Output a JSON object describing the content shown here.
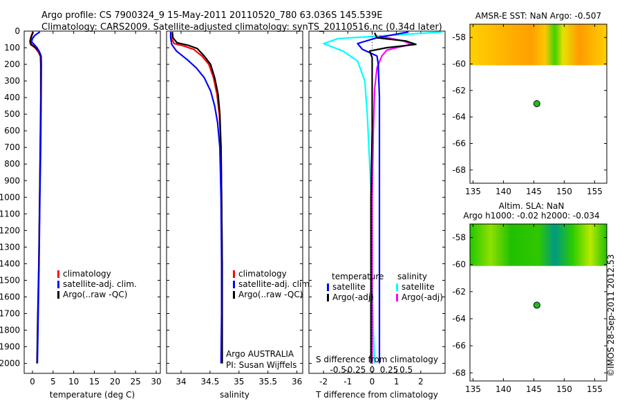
{
  "header": {
    "line1": "Argo profile: CS 7900324_9 15-May-2011 20110520_780 63.036S 145.539E",
    "line2": "Climatology: CARS2009. Satellite-adjusted climatology: synTS_20110516.nc (0.34d later)"
  },
  "footer_credit": "©IMOS 28-Sep-2011 2012.53",
  "colors": {
    "climatology": "#ff0000",
    "satellite": "#0000ff",
    "argo": "#000000",
    "sat_s": "#00ffff",
    "argo_s": "#ff00ff"
  },
  "chart_data": [
    {
      "type": "line",
      "xlabel": "temperature (deg C)",
      "xlim": [
        -2,
        31
      ],
      "xticks": [
        0,
        5,
        10,
        15,
        20,
        25,
        30
      ],
      "xticklabels": [
        "0",
        "5",
        "10",
        "15",
        "20",
        "25",
        "30"
      ],
      "ylim": [
        2060,
        0
      ],
      "yticks": [
        0,
        100,
        200,
        300,
        400,
        500,
        600,
        700,
        800,
        900,
        1000,
        1100,
        1200,
        1300,
        1400,
        1500,
        1600,
        1700,
        1800,
        1900,
        2000
      ],
      "yticklabels": [
        "0",
        "100",
        "200",
        "300",
        "400",
        "500",
        "600",
        "700",
        "800",
        "900",
        "1000",
        "1100",
        "1200",
        "1300",
        "1400",
        "1500",
        "1600",
        "1700",
        "1800",
        "1900",
        "2000"
      ],
      "legend": [
        "climatology",
        "satellite-adj. clim.",
        "Argo(..raw -QC)"
      ],
      "series": [
        {
          "name": "climatology",
          "color": "#ff0000",
          "points": [
            [
              0.1,
              5
            ],
            [
              -0.3,
              30
            ],
            [
              -0.6,
              60
            ],
            [
              -0.5,
              80
            ],
            [
              0.6,
              100
            ],
            [
              1.4,
              125
            ],
            [
              1.9,
              150
            ],
            [
              2.0,
              200
            ],
            [
              2.0,
              400
            ],
            [
              1.9,
              700
            ],
            [
              1.75,
              1000
            ],
            [
              1.55,
              1400
            ],
            [
              1.35,
              1700
            ],
            [
              1.15,
              2000
            ]
          ]
        },
        {
          "name": "Argo(..raw -QC)",
          "color": "#000000",
          "points": [
            [
              0.2,
              5
            ],
            [
              -0.2,
              30
            ],
            [
              -0.6,
              60
            ],
            [
              -0.3,
              80
            ],
            [
              0.8,
              100
            ],
            [
              1.6,
              125
            ],
            [
              2.05,
              155
            ],
            [
              2.05,
              200
            ],
            [
              2.05,
              400
            ],
            [
              1.9,
              700
            ],
            [
              1.75,
              1000
            ],
            [
              1.55,
              1400
            ],
            [
              1.3,
              1700
            ],
            [
              1.1,
              2000
            ]
          ]
        },
        {
          "name": "satellite-adj. clim.",
          "color": "#0000ff",
          "points": [
            [
              1.8,
              5
            ],
            [
              0.6,
              25
            ],
            [
              0.0,
              45
            ],
            [
              -0.2,
              65
            ],
            [
              0.4,
              80
            ],
            [
              1.1,
              100
            ],
            [
              1.7,
              125
            ],
            [
              2.1,
              150
            ],
            [
              2.15,
              200
            ],
            [
              2.1,
              400
            ],
            [
              2.0,
              700
            ],
            [
              1.8,
              1000
            ],
            [
              1.6,
              1400
            ],
            [
              1.4,
              1700
            ],
            [
              1.2,
              2000
            ]
          ]
        }
      ],
      "annotations": []
    },
    {
      "type": "line",
      "xlabel": "salinity",
      "xlim": [
        33.75,
        36.1
      ],
      "xticks": [
        34,
        34.5,
        35,
        35.5,
        36
      ],
      "xticklabels": [
        "34",
        "34.5",
        "35",
        "35.5",
        "36"
      ],
      "ylim": [
        2060,
        0
      ],
      "yticks": [
        0,
        100,
        200,
        300,
        400,
        500,
        600,
        700,
        800,
        900,
        1000,
        1100,
        1200,
        1300,
        1400,
        1500,
        1600,
        1700,
        1800,
        1900,
        2000
      ],
      "yticklabels": [],
      "legend": [
        "climatology",
        "satellite-adj. clim.",
        "Argo(..raw -QC)"
      ],
      "series": [
        {
          "name": "climatology",
          "color": "#ff0000",
          "points": [
            [
              33.82,
              5
            ],
            [
              33.83,
              40
            ],
            [
              33.88,
              75
            ],
            [
              34.05,
              90
            ],
            [
              34.22,
              110
            ],
            [
              34.36,
              150
            ],
            [
              34.48,
              200
            ],
            [
              34.56,
              280
            ],
            [
              34.62,
              380
            ],
            [
              34.66,
              500
            ],
            [
              34.69,
              700
            ],
            [
              34.7,
              1000
            ],
            [
              34.71,
              1400
            ],
            [
              34.71,
              1700
            ],
            [
              34.71,
              2000
            ]
          ]
        },
        {
          "name": "Argo(..raw -QC)",
          "color": "#000000",
          "points": [
            [
              33.85,
              5
            ],
            [
              33.86,
              40
            ],
            [
              33.93,
              70
            ],
            [
              34.12,
              85
            ],
            [
              34.28,
              105
            ],
            [
              34.4,
              150
            ],
            [
              34.51,
              200
            ],
            [
              34.58,
              280
            ],
            [
              34.64,
              380
            ],
            [
              34.67,
              500
            ],
            [
              34.69,
              700
            ],
            [
              34.7,
              1000
            ],
            [
              34.71,
              1400
            ],
            [
              34.71,
              1700
            ],
            [
              34.71,
              2000
            ]
          ]
        },
        {
          "name": "satellite-adj. clim.",
          "color": "#0000ff",
          "points": [
            [
              33.82,
              5
            ],
            [
              33.82,
              40
            ],
            [
              33.84,
              80
            ],
            [
              33.92,
              120
            ],
            [
              34.1,
              170
            ],
            [
              34.26,
              220
            ],
            [
              34.4,
              280
            ],
            [
              34.51,
              360
            ],
            [
              34.58,
              450
            ],
            [
              34.63,
              550
            ],
            [
              34.67,
              700
            ],
            [
              34.69,
              1000
            ],
            [
              34.7,
              1400
            ],
            [
              34.7,
              1700
            ],
            [
              34.69,
              2000
            ]
          ]
        }
      ],
      "annotations": [
        "Argo AUSTRALIA",
        "PI: Susan Wijffels"
      ]
    },
    {
      "type": "line",
      "xlabel": "T difference from climatology",
      "xlabel_top": "S difference from climatology",
      "xlim": [
        -2.6,
        3.0
      ],
      "xticks": [
        -2,
        -1,
        0,
        1,
        2
      ],
      "xticklabels": [
        "-2",
        "-1",
        "0",
        "1",
        "2"
      ],
      "s_ticks": [
        -0.5,
        -0.25,
        0,
        0.25,
        0.5
      ],
      "s_ticklabels": [
        "-0.5",
        "-0.25",
        "0",
        "0.25",
        "0.5"
      ],
      "ylim": [
        2060,
        0
      ],
      "yticks": [
        0,
        100,
        200,
        300,
        400,
        500,
        600,
        700,
        800,
        900,
        1000,
        1100,
        1200,
        1300,
        1400,
        1500,
        1600,
        1700,
        1800,
        1900,
        2000
      ],
      "yticklabels": [],
      "legend_temperature_title": "temperature",
      "legend_salinity_title": "salinity",
      "legend_temperature": [
        "satellite",
        "Argo(-adj)"
      ],
      "legend_salinity": [
        "satellite",
        "Argo(-adj)"
      ],
      "series": [
        {
          "name": "S satellite",
          "color": "#00ffff",
          "points": [
            [
              2.9,
              5
            ],
            [
              0.8,
              25
            ],
            [
              -1.4,
              45
            ],
            [
              -2.0,
              75
            ],
            [
              -1.2,
              120
            ],
            [
              -0.6,
              180
            ],
            [
              -0.3,
              300
            ],
            [
              -0.2,
              500
            ],
            [
              -0.1,
              800
            ],
            [
              0.0,
              1100
            ],
            [
              0.0,
              1500
            ],
            [
              0.05,
              1800
            ],
            [
              0.1,
              2000
            ]
          ]
        },
        {
          "name": "S Argo(-adj)",
          "color": "#ff00ff",
          "points": [
            [
              0.3,
              30
            ],
            [
              1.3,
              60
            ],
            [
              1.6,
              80
            ],
            [
              1.0,
              100
            ],
            [
              0.6,
              115
            ],
            [
              0.4,
              150
            ],
            [
              0.2,
              220
            ],
            [
              0.1,
              350
            ],
            [
              0.05,
              600
            ],
            [
              0.0,
              1000
            ],
            [
              0.0,
              1500
            ],
            [
              0.0,
              2000
            ]
          ]
        },
        {
          "name": "T satellite",
          "color": "#0000ff",
          "points": [
            [
              1.5,
              5
            ],
            [
              0.2,
              40
            ],
            [
              -0.6,
              75
            ],
            [
              -0.4,
              110
            ],
            [
              0.2,
              150
            ],
            [
              0.25,
              200
            ],
            [
              0.3,
              400
            ],
            [
              0.3,
              700
            ],
            [
              0.3,
              1000
            ],
            [
              0.3,
              1400
            ],
            [
              0.3,
              1700
            ],
            [
              0.3,
              2000
            ]
          ]
        },
        {
          "name": "T Argo(-adj)",
          "color": "#000000",
          "points": [
            [
              0.1,
              10
            ],
            [
              0.2,
              40
            ],
            [
              1.4,
              60
            ],
            [
              1.8,
              80
            ],
            [
              0.6,
              100
            ],
            [
              -0.1,
              120
            ],
            [
              0.0,
              160
            ],
            [
              0.0,
              300
            ],
            [
              0.0,
              600
            ],
            [
              -0.05,
              1000
            ],
            [
              -0.05,
              1400
            ],
            [
              -0.05,
              1700
            ],
            [
              -0.05,
              2000
            ]
          ]
        }
      ]
    },
    {
      "type": "heatmap",
      "title": "AMSR-E SST: NaN Argo: -0.507",
      "xlim": [
        134.5,
        157
      ],
      "ylim": [
        -69,
        -57
      ],
      "xticks": [
        135,
        140,
        145,
        150,
        155
      ],
      "yticks": [
        -58,
        -60,
        -62,
        -64,
        -66,
        -68
      ],
      "yticklabels": [
        "-58",
        "-60",
        "-62",
        "-64",
        "-66",
        "-68"
      ],
      "data_extent": {
        "lon": [
          134.5,
          157
        ],
        "lat": [
          -60.1,
          -57
        ]
      },
      "argo_point": [
        145.5,
        -63.0
      ]
    },
    {
      "type": "heatmap",
      "title": "Altim. SLA: NaN",
      "subtitle": "Argo h1000: -0.02 h2000: -0.034",
      "xlim": [
        134.5,
        157
      ],
      "ylim": [
        -68.6,
        -57
      ],
      "xticks": [
        135,
        140,
        145,
        150,
        155
      ],
      "yticks": [
        -58,
        -60,
        -62,
        -64,
        -66,
        -68
      ],
      "yticklabels": [
        "-58",
        "-60",
        "-62",
        "-64",
        "-66",
        "-68"
      ],
      "data_extent": {
        "lon": [
          134.5,
          157
        ],
        "lat": [
          -60.1,
          -57
        ]
      },
      "argo_point": [
        145.5,
        -63.0
      ]
    }
  ]
}
